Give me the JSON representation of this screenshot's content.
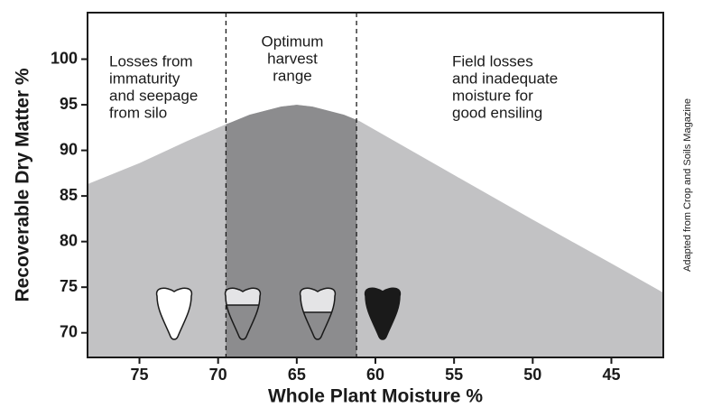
{
  "chart_data": {
    "type": "area",
    "x_label": "Whole Plant Moisture %",
    "y_label": "Recoverable Dry Matter %",
    "x": [
      78.3,
      75,
      72,
      70,
      68,
      66,
      65,
      64,
      62,
      61,
      55,
      50,
      45,
      41.7
    ],
    "values": [
      86.3,
      88.6,
      91.0,
      92.5,
      93.9,
      94.8,
      95.0,
      94.8,
      93.9,
      93.2,
      87.3,
      82.4,
      77.6,
      74.4
    ],
    "color": "#c2c2c4",
    "xlim": [
      78.3,
      41.7
    ],
    "ylim": [
      67.3,
      105.1
    ],
    "xticks": [
      75,
      70,
      65,
      60,
      55,
      50,
      45
    ],
    "yticks": [
      70,
      75,
      80,
      85,
      90,
      95,
      100
    ],
    "optimum": {
      "range": [
        69.5,
        61.2
      ],
      "color": "#8c8c8e"
    },
    "annotations": [
      [
        "Losses from",
        "immaturity",
        "and seepage",
        "from silo"
      ],
      [
        "Optimum",
        "harvest",
        "range"
      ],
      [
        "Field losses",
        "and inadequate",
        "moisture for",
        "good ensiling"
      ]
    ],
    "source": "Adapted from Crop and Soils Magazine"
  }
}
